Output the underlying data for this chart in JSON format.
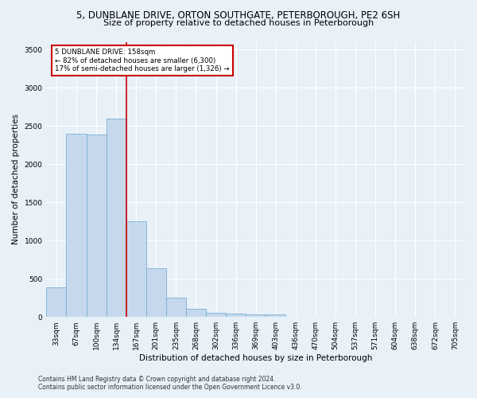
{
  "title1": "5, DUNBLANE DRIVE, ORTON SOUTHGATE, PETERBOROUGH, PE2 6SH",
  "title2": "Size of property relative to detached houses in Peterborough",
  "xlabel": "Distribution of detached houses by size in Peterborough",
  "ylabel": "Number of detached properties",
  "categories": [
    "33sqm",
    "67sqm",
    "100sqm",
    "134sqm",
    "167sqm",
    "201sqm",
    "235sqm",
    "268sqm",
    "302sqm",
    "336sqm",
    "369sqm",
    "403sqm",
    "436sqm",
    "470sqm",
    "504sqm",
    "537sqm",
    "571sqm",
    "604sqm",
    "638sqm",
    "672sqm",
    "705sqm"
  ],
  "values": [
    390,
    2400,
    2390,
    2600,
    1250,
    640,
    250,
    105,
    55,
    45,
    30,
    30,
    0,
    0,
    0,
    0,
    0,
    0,
    0,
    0,
    0
  ],
  "bar_color": "#c6d9ec",
  "bar_edge_color": "#7aafd4",
  "property_line_color": "#cc0000",
  "annotation_title": "5 DUNBLANE DRIVE: 158sqm",
  "annotation_line1": "← 82% of detached houses are smaller (6,300)",
  "annotation_line2": "17% of semi-detached houses are larger (1,326) →",
  "annotation_box_color": "#cc0000",
  "ylim": [
    0,
    3600
  ],
  "yticks": [
    0,
    500,
    1000,
    1500,
    2000,
    2500,
    3000,
    3500
  ],
  "footer_line1": "Contains HM Land Registry data © Crown copyright and database right 2024.",
  "footer_line2": "Contains public sector information licensed under the Open Government Licence v3.0.",
  "background_color": "#e8f0f8",
  "plot_bg_color": "#e8f0f8",
  "grid_color": "#ffffff",
  "title_fontsize": 8.5,
  "subtitle_fontsize": 8,
  "axis_label_fontsize": 7.5,
  "tick_fontsize": 6.5,
  "footer_fontsize": 5.5
}
